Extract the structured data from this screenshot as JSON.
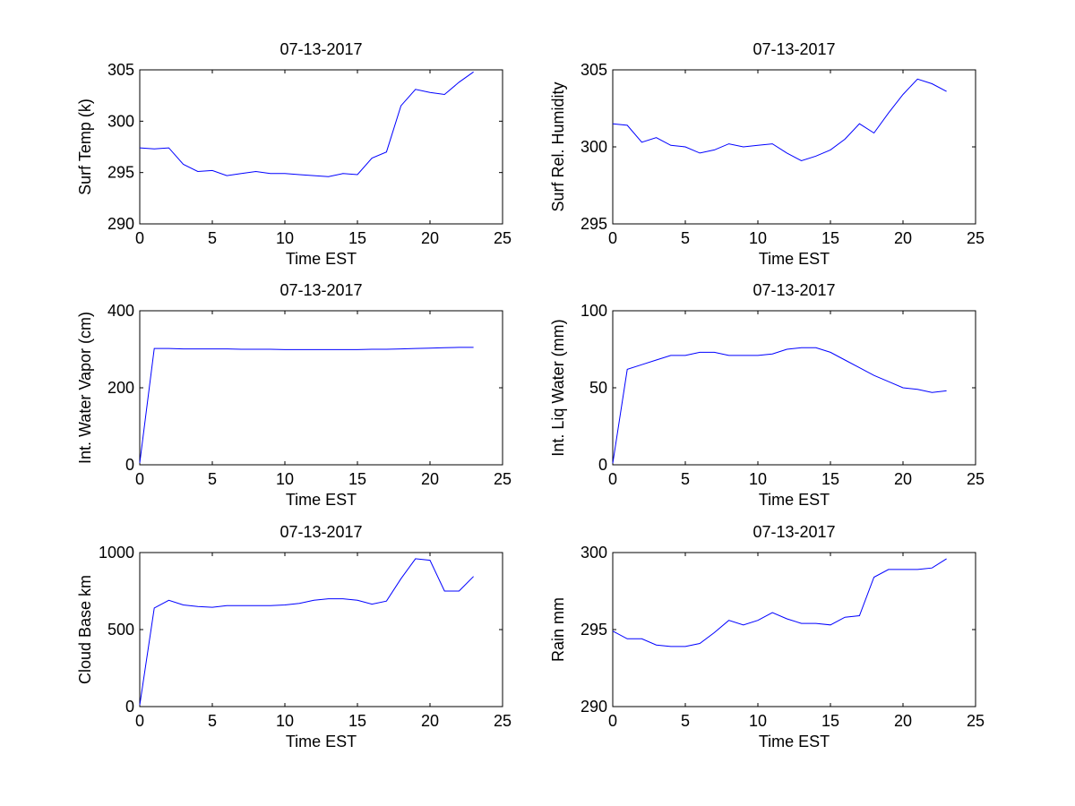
{
  "chart_data": [
    {
      "type": "line",
      "title": "07-13-2017",
      "xlabel": "Time EST",
      "ylabel": "Surf Temp (k)",
      "xlim": [
        0,
        25
      ],
      "ylim": [
        290,
        305
      ],
      "xticks": [
        0,
        5,
        10,
        15,
        20,
        25
      ],
      "yticks": [
        290,
        295,
        300,
        305
      ],
      "grid": false,
      "color": "#0000ff",
      "x": [
        0,
        1,
        2,
        3,
        4,
        5,
        6,
        7,
        8,
        9,
        10,
        11,
        12,
        13,
        14,
        15,
        16,
        17,
        18,
        19,
        20,
        21,
        22,
        23
      ],
      "y": [
        297.4,
        297.3,
        297.4,
        295.8,
        295.1,
        295.2,
        294.7,
        294.9,
        295.1,
        294.9,
        294.9,
        294.8,
        294.7,
        294.6,
        294.9,
        294.8,
        296.4,
        297.0,
        301.5,
        303.1,
        302.8,
        302.6,
        303.8,
        304.8
      ]
    },
    {
      "type": "line",
      "title": "07-13-2017",
      "xlabel": "Time EST",
      "ylabel": "Surf Rel. Humidity",
      "xlim": [
        0,
        25
      ],
      "ylim": [
        295,
        305
      ],
      "xticks": [
        0,
        5,
        10,
        15,
        20,
        25
      ],
      "yticks": [
        295,
        300,
        305
      ],
      "grid": false,
      "color": "#0000ff",
      "x": [
        0,
        1,
        2,
        3,
        4,
        5,
        6,
        7,
        8,
        9,
        10,
        11,
        12,
        13,
        14,
        15,
        16,
        17,
        18,
        19,
        20,
        21,
        22,
        23
      ],
      "y": [
        301.5,
        301.4,
        300.3,
        300.6,
        300.1,
        300.0,
        299.6,
        299.8,
        300.2,
        300.0,
        300.1,
        300.2,
        299.6,
        299.1,
        299.4,
        299.8,
        300.5,
        301.5,
        300.9,
        302.2,
        303.4,
        304.4,
        304.1,
        303.6
      ]
    },
    {
      "type": "line",
      "title": "07-13-2017",
      "xlabel": "Time EST",
      "ylabel": "Int. Water Vapor (cm)",
      "xlim": [
        0,
        25
      ],
      "ylim": [
        0,
        400
      ],
      "xticks": [
        0,
        5,
        10,
        15,
        20,
        25
      ],
      "yticks": [
        0,
        200,
        400
      ],
      "grid": false,
      "color": "#0000ff",
      "x": [
        0,
        1,
        2,
        3,
        4,
        5,
        6,
        7,
        8,
        9,
        10,
        11,
        12,
        13,
        14,
        15,
        16,
        17,
        18,
        19,
        20,
        21,
        22,
        23
      ],
      "y": [
        5,
        302,
        302,
        301,
        301,
        301,
        301,
        300,
        300,
        300,
        299,
        299,
        299,
        299,
        299,
        299,
        300,
        300,
        301,
        302,
        303,
        304,
        305,
        305
      ]
    },
    {
      "type": "line",
      "title": "07-13-2017",
      "xlabel": "Time EST",
      "ylabel": "Int. Liq Water (mm)",
      "xlim": [
        0,
        25
      ],
      "ylim": [
        0,
        100
      ],
      "xticks": [
        0,
        5,
        10,
        15,
        20,
        25
      ],
      "yticks": [
        0,
        50,
        100
      ],
      "grid": false,
      "color": "#0000ff",
      "x": [
        0,
        1,
        2,
        3,
        4,
        5,
        6,
        7,
        8,
        9,
        10,
        11,
        12,
        13,
        14,
        15,
        16,
        17,
        18,
        19,
        20,
        21,
        22,
        23
      ],
      "y": [
        1,
        62,
        65,
        68,
        71,
        71,
        73,
        73,
        71,
        71,
        71,
        72,
        75,
        76,
        76,
        73,
        68,
        63,
        58,
        54,
        50,
        49,
        47,
        48
      ]
    },
    {
      "type": "line",
      "title": "07-13-2017",
      "xlabel": "Time EST",
      "ylabel": "Cloud Base km",
      "xlim": [
        0,
        25
      ],
      "ylim": [
        0,
        1000
      ],
      "xticks": [
        0,
        5,
        10,
        15,
        20,
        25
      ],
      "yticks": [
        0,
        500,
        1000
      ],
      "grid": false,
      "color": "#0000ff",
      "x": [
        0,
        1,
        2,
        3,
        4,
        5,
        6,
        7,
        8,
        9,
        10,
        11,
        12,
        13,
        14,
        15,
        16,
        17,
        18,
        19,
        20,
        21,
        22,
        23
      ],
      "y": [
        10,
        640,
        690,
        660,
        650,
        645,
        655,
        655,
        655,
        655,
        660,
        670,
        690,
        700,
        700,
        690,
        665,
        685,
        830,
        960,
        950,
        750,
        750,
        845
      ]
    },
    {
      "type": "line",
      "title": "07-13-2017",
      "xlabel": "Time EST",
      "ylabel": "Rain mm",
      "xlim": [
        0,
        25
      ],
      "ylim": [
        290,
        300
      ],
      "xticks": [
        0,
        5,
        10,
        15,
        20,
        25
      ],
      "yticks": [
        290,
        295,
        300
      ],
      "grid": false,
      "color": "#0000ff",
      "x": [
        0,
        1,
        2,
        3,
        4,
        5,
        6,
        7,
        8,
        9,
        10,
        11,
        12,
        13,
        14,
        15,
        16,
        17,
        18,
        19,
        20,
        21,
        22,
        23
      ],
      "y": [
        294.9,
        294.4,
        294.4,
        294.0,
        293.9,
        293.9,
        294.1,
        294.8,
        295.6,
        295.3,
        295.6,
        296.1,
        295.7,
        295.4,
        295.4,
        295.3,
        295.8,
        295.9,
        298.4,
        298.9,
        298.9,
        298.9,
        299.0,
        299.6
      ]
    }
  ]
}
